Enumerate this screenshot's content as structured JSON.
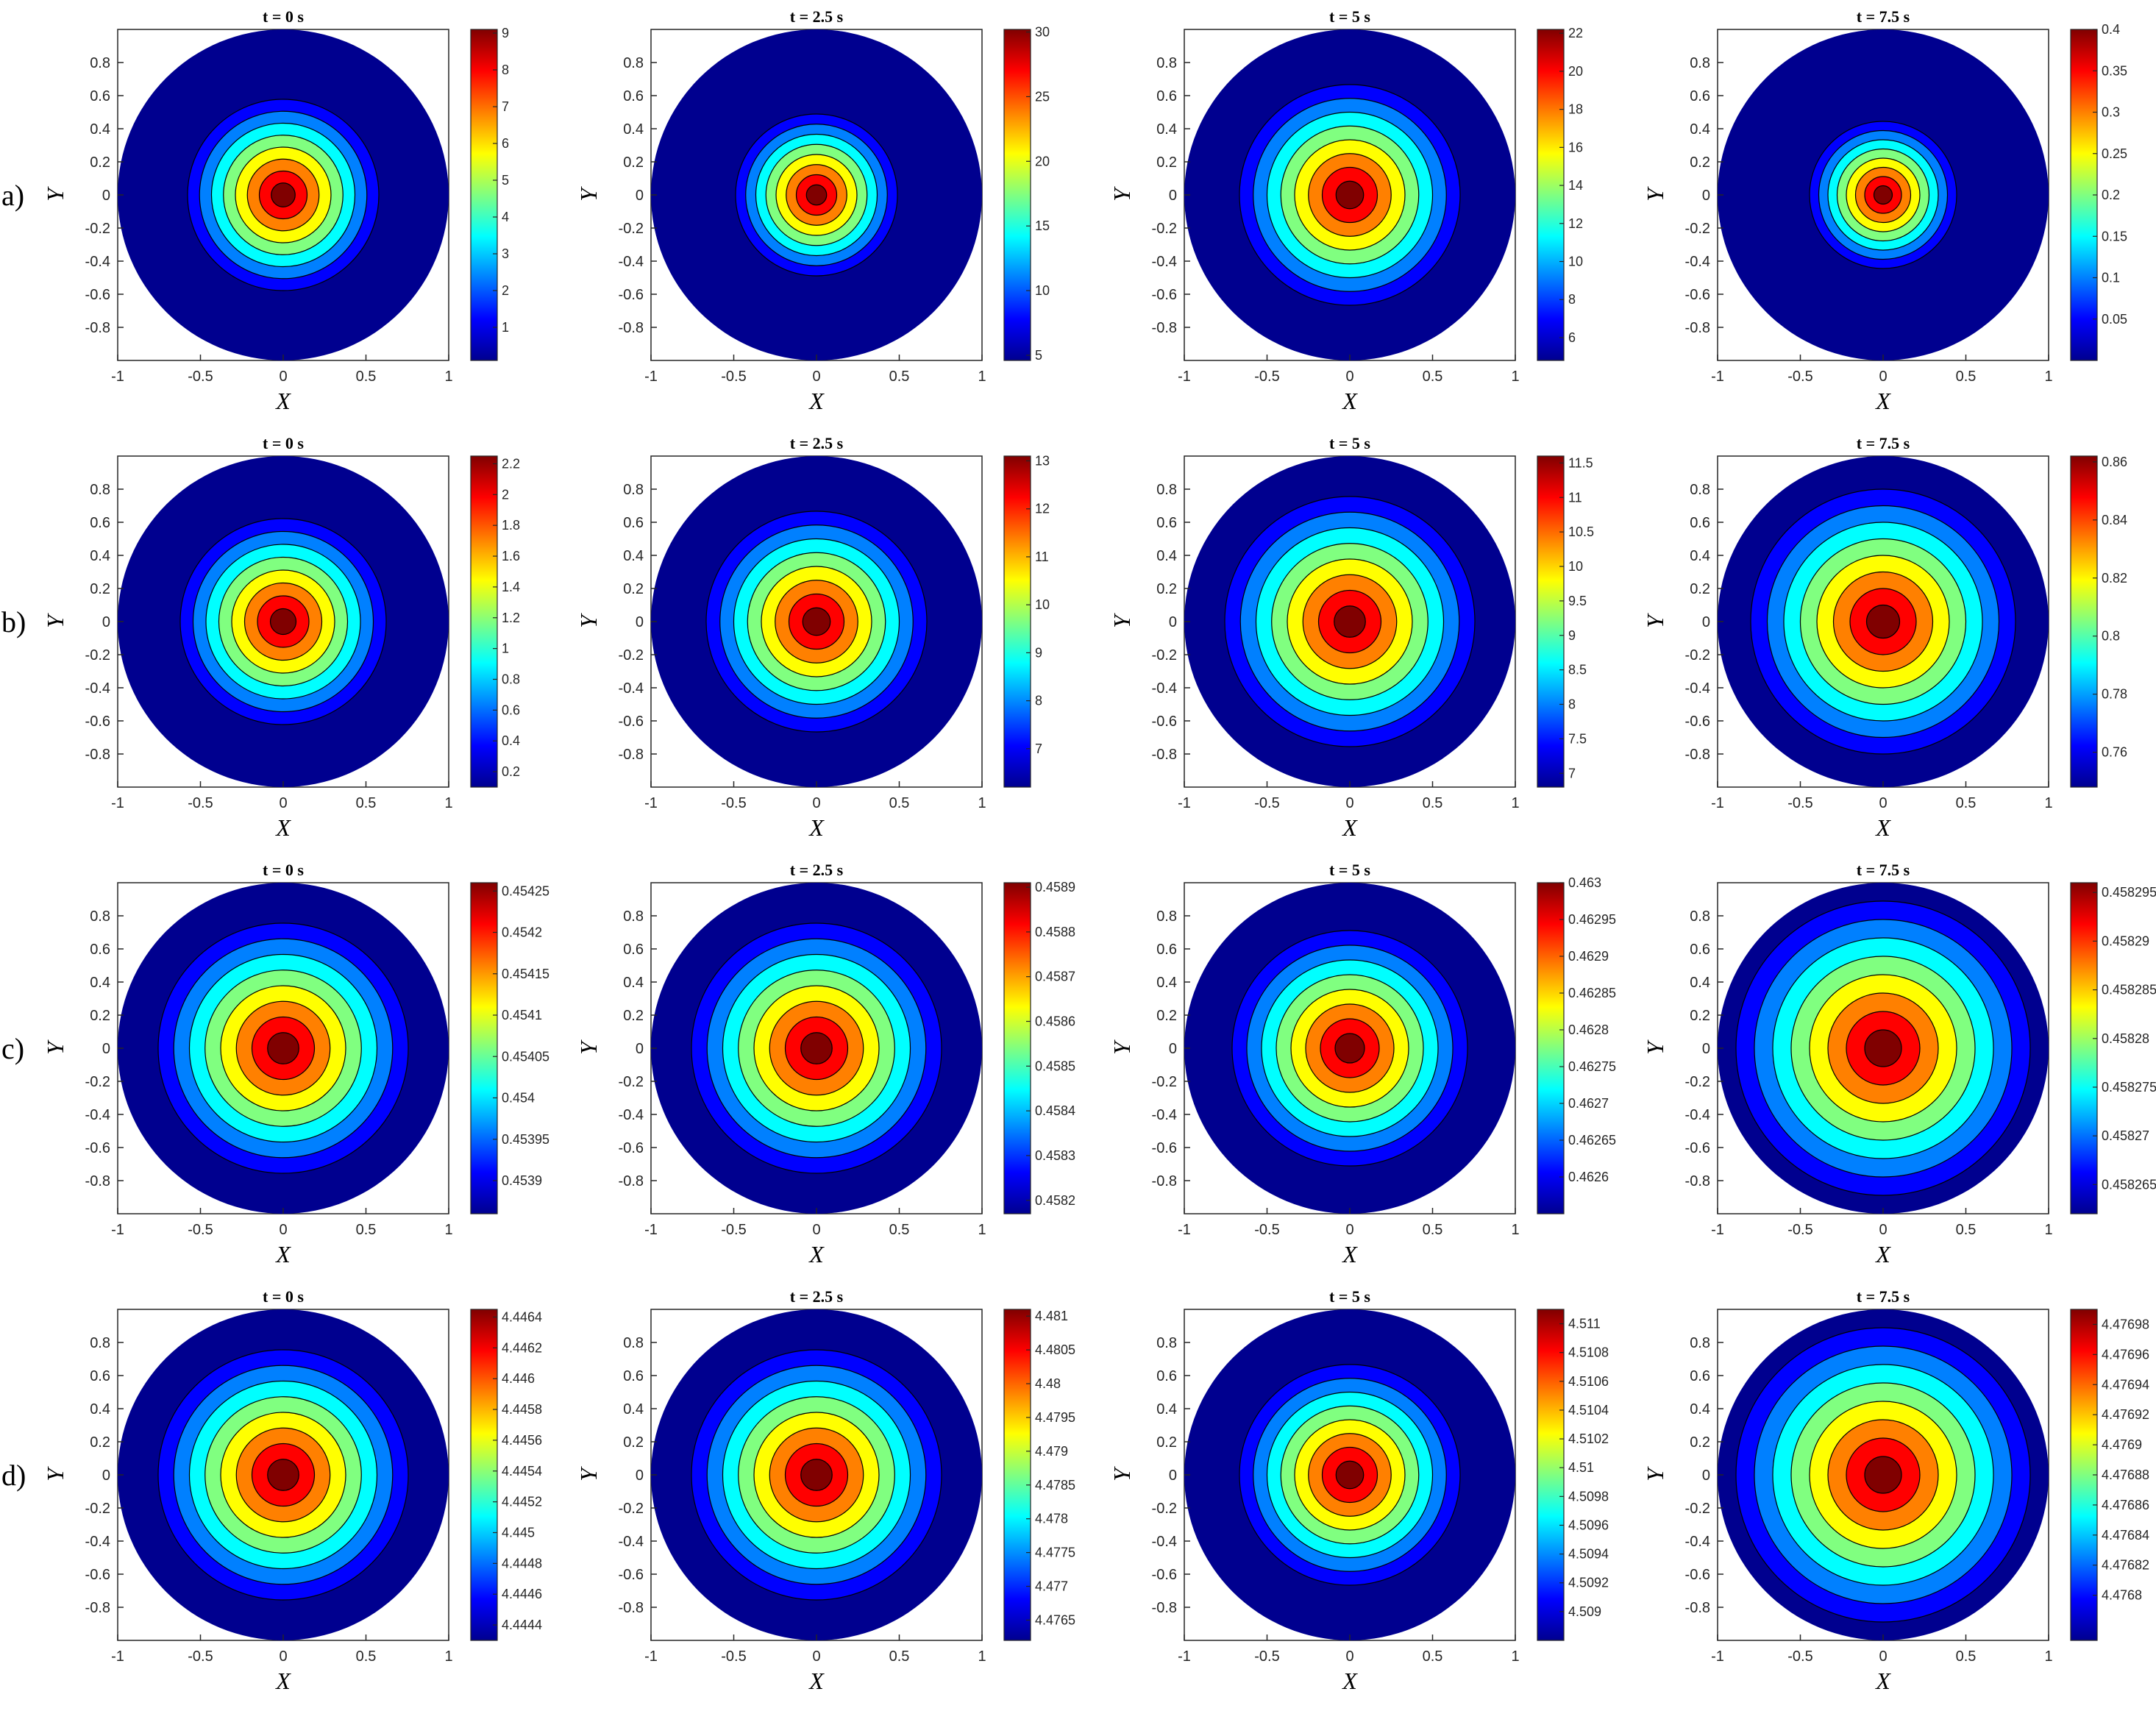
{
  "figure": {
    "row_labels": [
      "a)",
      "b)",
      "c)",
      "d)"
    ],
    "column_titles": [
      "t = 0 s",
      "t = 2.5 s",
      "t = 5 s",
      "t = 7.5 s"
    ],
    "xlabel": "X",
    "ylabel": "Y",
    "x_ticks": [
      "-1",
      "-0.5",
      "0",
      "0.5",
      "1"
    ],
    "y_ticks": [
      "0.8",
      "0.6",
      "0.4",
      "0.2",
      "0",
      "-0.2",
      "-0.4",
      "-0.6",
      "-0.8"
    ],
    "colormap": [
      "#00008f",
      "#0000ff",
      "#0080ff",
      "#00ffff",
      "#80ff80",
      "#ffff00",
      "#ff8000",
      "#ff0000",
      "#800000"
    ]
  },
  "chart_data": [
    {
      "type": "heatmap",
      "row": "a)",
      "title": "t = 0 s",
      "xlabel": "X",
      "ylabel": "Y",
      "xlim": [
        -1,
        1
      ],
      "ylim": [
        -1,
        1
      ],
      "colorbar_ticks": [
        "9",
        "8",
        "7",
        "6",
        "5",
        "4",
        "3",
        "2",
        "1"
      ],
      "colorbar_range": [
        0.1,
        9.1
      ],
      "peak_radius": 0.65
    },
    {
      "type": "heatmap",
      "row": "a)",
      "title": "t = 2.5 s",
      "xlabel": "X",
      "ylabel": "Y",
      "xlim": [
        -1,
        1
      ],
      "ylim": [
        -1,
        1
      ],
      "colorbar_ticks": [
        "30",
        "25",
        "20",
        "15",
        "10",
        "5"
      ],
      "colorbar_range": [
        4.6,
        30.2
      ],
      "peak_radius": 0.55
    },
    {
      "type": "heatmap",
      "row": "a)",
      "title": "t = 5 s",
      "xlabel": "X",
      "ylabel": "Y",
      "xlim": [
        -1,
        1
      ],
      "ylim": [
        -1,
        1
      ],
      "colorbar_ticks": [
        "22",
        "20",
        "18",
        "16",
        "14",
        "12",
        "10",
        "8",
        "6"
      ],
      "colorbar_range": [
        4.8,
        22.2
      ],
      "peak_radius": 0.75
    },
    {
      "type": "heatmap",
      "row": "a)",
      "title": "t = 7.5 s",
      "xlabel": "X",
      "ylabel": "Y",
      "xlim": [
        -1,
        1
      ],
      "ylim": [
        -1,
        1
      ],
      "colorbar_ticks": [
        "0.4",
        "0.35",
        "0.3",
        "0.25",
        "0.2",
        "0.15",
        "0.1",
        "0.05"
      ],
      "colorbar_range": [
        0.0,
        0.4
      ],
      "peak_radius": 0.5
    },
    {
      "type": "heatmap",
      "row": "b)",
      "title": "t = 0 s",
      "xlabel": "X",
      "ylabel": "Y",
      "xlim": [
        -1,
        1
      ],
      "ylim": [
        -1,
        1
      ],
      "colorbar_ticks": [
        "2.2",
        "2",
        "1.8",
        "1.6",
        "1.4",
        "1.2",
        "1",
        "0.8",
        "0.6",
        "0.4",
        "0.2"
      ],
      "colorbar_range": [
        0.1,
        2.25
      ],
      "peak_radius": 0.7
    },
    {
      "type": "heatmap",
      "row": "b)",
      "title": "t = 2.5 s",
      "xlabel": "X",
      "ylabel": "Y",
      "xlim": [
        -1,
        1
      ],
      "ylim": [
        -1,
        1
      ],
      "colorbar_ticks": [
        "13",
        "12",
        "11",
        "10",
        "9",
        "8",
        "7"
      ],
      "colorbar_range": [
        6.2,
        13.1
      ],
      "peak_radius": 0.75
    },
    {
      "type": "heatmap",
      "row": "b)",
      "title": "t = 5 s",
      "xlabel": "X",
      "ylabel": "Y",
      "xlim": [
        -1,
        1
      ],
      "ylim": [
        -1,
        1
      ],
      "colorbar_ticks": [
        "11.5",
        "11",
        "10.5",
        "10",
        "9.5",
        "9",
        "8.5",
        "8",
        "7.5",
        "7"
      ],
      "colorbar_range": [
        6.8,
        11.6
      ],
      "peak_radius": 0.85
    },
    {
      "type": "heatmap",
      "row": "b)",
      "title": "t = 7.5 s",
      "xlabel": "X",
      "ylabel": "Y",
      "xlim": [
        -1,
        1
      ],
      "ylim": [
        -1,
        1
      ],
      "colorbar_ticks": [
        "0.86",
        "0.84",
        "0.82",
        "0.8",
        "0.78",
        "0.76"
      ],
      "colorbar_range": [
        0.748,
        0.862
      ],
      "peak_radius": 0.9
    },
    {
      "type": "heatmap",
      "row": "c)",
      "title": "t = 0 s",
      "xlabel": "X",
      "ylabel": "Y",
      "xlim": [
        -1,
        1
      ],
      "ylim": [
        -1,
        1
      ],
      "colorbar_ticks": [
        "0.45425",
        "0.4542",
        "0.45415",
        "0.4541",
        "0.45405",
        "0.454",
        "0.45395",
        "0.4539"
      ],
      "colorbar_range": [
        0.45386,
        0.45426
      ],
      "peak_radius": 0.85
    },
    {
      "type": "heatmap",
      "row": "c)",
      "title": "t = 2.5 s",
      "xlabel": "X",
      "ylabel": "Y",
      "xlim": [
        -1,
        1
      ],
      "ylim": [
        -1,
        1
      ],
      "colorbar_ticks": [
        "0.4589",
        "0.4588",
        "0.4587",
        "0.4586",
        "0.4585",
        "0.4584",
        "0.4583",
        "0.4582"
      ],
      "colorbar_range": [
        0.45817,
        0.45891
      ],
      "peak_radius": 0.85
    },
    {
      "type": "heatmap",
      "row": "c)",
      "title": "t = 5 s",
      "xlabel": "X",
      "ylabel": "Y",
      "xlim": [
        -1,
        1
      ],
      "ylim": [
        -1,
        1
      ],
      "colorbar_ticks": [
        "0.463",
        "0.46295",
        "0.4629",
        "0.46285",
        "0.4628",
        "0.46275",
        "0.4627",
        "0.46265",
        "0.4626"
      ],
      "colorbar_range": [
        0.46255,
        0.463
      ],
      "peak_radius": 0.8
    },
    {
      "type": "heatmap",
      "row": "c)",
      "title": "t = 7.5 s",
      "xlabel": "X",
      "ylabel": "Y",
      "xlim": [
        -1,
        1
      ],
      "ylim": [
        -1,
        1
      ],
      "colorbar_ticks": [
        "0.458295",
        "0.45829",
        "0.458285",
        "0.45828",
        "0.458275",
        "0.45827",
        "0.458265"
      ],
      "colorbar_range": [
        0.458262,
        0.458296
      ],
      "peak_radius": 1.0
    },
    {
      "type": "heatmap",
      "row": "d)",
      "title": "t = 0 s",
      "xlabel": "X",
      "ylabel": "Y",
      "xlim": [
        -1,
        1
      ],
      "ylim": [
        -1,
        1
      ],
      "colorbar_ticks": [
        "4.4464",
        "4.4462",
        "4.446",
        "4.4458",
        "4.4456",
        "4.4454",
        "4.4452",
        "4.445",
        "4.4448",
        "4.4446",
        "4.4444"
      ],
      "colorbar_range": [
        4.4443,
        4.44645
      ],
      "peak_radius": 0.85
    },
    {
      "type": "heatmap",
      "row": "d)",
      "title": "t = 2.5 s",
      "xlabel": "X",
      "ylabel": "Y",
      "xlim": [
        -1,
        1
      ],
      "ylim": [
        -1,
        1
      ],
      "colorbar_ticks": [
        "4.481",
        "4.4805",
        "4.48",
        "4.4795",
        "4.479",
        "4.4785",
        "4.478",
        "4.4775",
        "4.477",
        "4.4765"
      ],
      "colorbar_range": [
        4.4762,
        4.4811
      ],
      "peak_radius": 0.85
    },
    {
      "type": "heatmap",
      "row": "d)",
      "title": "t = 5 s",
      "xlabel": "X",
      "ylabel": "Y",
      "xlim": [
        -1,
        1
      ],
      "ylim": [
        -1,
        1
      ],
      "colorbar_ticks": [
        "4.511",
        "4.5108",
        "4.5106",
        "4.5104",
        "4.5102",
        "4.51",
        "4.5098",
        "4.5096",
        "4.5094",
        "4.5092",
        "4.509"
      ],
      "colorbar_range": [
        4.5088,
        4.5111
      ],
      "peak_radius": 0.75
    },
    {
      "type": "heatmap",
      "row": "d)",
      "title": "t = 7.5 s",
      "xlabel": "X",
      "ylabel": "Y",
      "xlim": [
        -1,
        1
      ],
      "ylim": [
        -1,
        1
      ],
      "colorbar_ticks": [
        "4.47698",
        "4.47696",
        "4.47694",
        "4.47692",
        "4.4769",
        "4.47688",
        "4.47686",
        "4.47684",
        "4.47682",
        "4.4768"
      ],
      "colorbar_range": [
        4.47677,
        4.47699
      ],
      "peak_radius": 1.0
    }
  ]
}
